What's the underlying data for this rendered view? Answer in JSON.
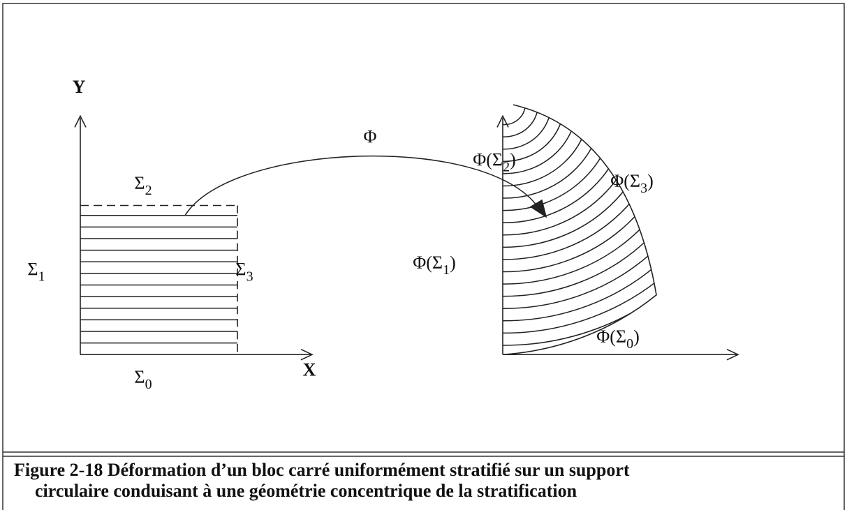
{
  "labels": [
    {
      "base": "Y"
    },
    {
      "base": "X"
    },
    {
      "base": "Φ"
    },
    {
      "base": "Σ",
      "sub": "2"
    },
    {
      "base": "Σ",
      "sub": "1"
    },
    {
      "base": "Σ",
      "sub": "3"
    },
    {
      "base": "Σ",
      "sub": "0"
    },
    {
      "base": "Φ(Σ",
      "sub": "2",
      "suffix": ")"
    },
    {
      "base": "Φ(Σ",
      "sub": "3",
      "suffix": ")"
    },
    {
      "base": "Φ(Σ",
      "sub": "1",
      "suffix": ")"
    },
    {
      "base": "Φ(Σ",
      "sub": "0",
      "suffix": ")"
    }
  ],
  "caption": [
    "Figure 2-18 Déformation d’un bloc carré uniformément stratifié sur un support",
    "circulaire conduisant à une géométrie concentrique de la stratification"
  ]
}
